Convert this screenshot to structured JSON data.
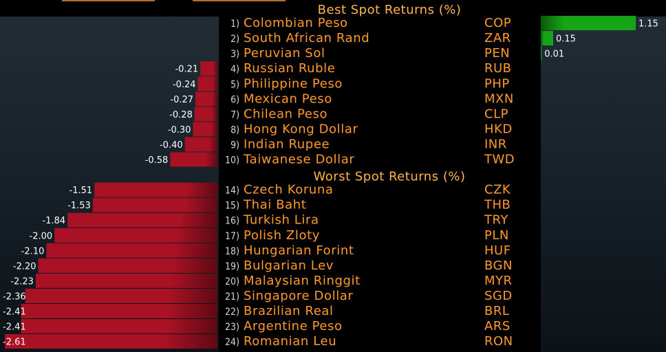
{
  "colors": {
    "positive_bar": "#16a516",
    "negative_bar": "#a81224",
    "header_text": "#ffb54d",
    "row_text": "#ff9a2e",
    "rank_text": "#d8d8d8",
    "value_text": "#ffffff",
    "panel_bg": "#1b252e"
  },
  "chart_data": [
    {
      "type": "bar",
      "title": "Best Spot Returns (%)",
      "value_unit": "%",
      "categories": [
        "Colombian Peso",
        "South African Rand",
        "Peruvian Sol",
        "Russian Ruble",
        "Philippine Peso",
        "Mexican Peso",
        "Chilean Peso",
        "Hong Kong Dollar",
        "Indian Rupee",
        "Taiwanese Dollar"
      ],
      "codes": [
        "COP",
        "ZAR",
        "PEN",
        "RUB",
        "PHP",
        "MXN",
        "CLP",
        "HKD",
        "INR",
        "TWD"
      ],
      "ranks": [
        "1)",
        "2)",
        "3)",
        "4)",
        "5)",
        "6)",
        "7)",
        "8)",
        "9)",
        "10)"
      ],
      "values": [
        1.15,
        0.15,
        0.01,
        -0.21,
        -0.24,
        -0.27,
        -0.28,
        -0.3,
        -0.4,
        -0.58
      ],
      "value_labels": [
        "1.15",
        "0.15",
        "0.01",
        "-0.21",
        "-0.24",
        "-0.27",
        "-0.28",
        "-0.30",
        "-0.40",
        "-0.58"
      ]
    },
    {
      "type": "bar",
      "title": "Worst Spot Returns (%)",
      "value_unit": "%",
      "categories": [
        "Czech Koruna",
        "Thai Baht",
        "Turkish Lira",
        "Polish Zloty",
        "Hungarian Forint",
        "Bulgarian Lev",
        "Malaysian Ringgit",
        "Singapore Dollar",
        "Brazilian Real",
        "Argentine Peso",
        "Romanian Leu"
      ],
      "codes": [
        "CZK",
        "THB",
        "TRY",
        "PLN",
        "HUF",
        "BGN",
        "MYR",
        "SGD",
        "BRL",
        "ARS",
        "RON"
      ],
      "ranks": [
        "14)",
        "15)",
        "16)",
        "17)",
        "18)",
        "19)",
        "20)",
        "21)",
        "22)",
        "23)",
        "24)"
      ],
      "values": [
        -1.51,
        -1.53,
        -1.84,
        -2.0,
        -2.1,
        -2.2,
        -2.23,
        -2.36,
        -2.41,
        -2.41,
        -2.61
      ],
      "value_labels": [
        "-1.51",
        "-1.53",
        "-1.84",
        "-2.00",
        "-2.10",
        "-2.20",
        "-2.23",
        "-2.36",
        "-2.41",
        "-2.41",
        "-2.61"
      ]
    }
  ]
}
